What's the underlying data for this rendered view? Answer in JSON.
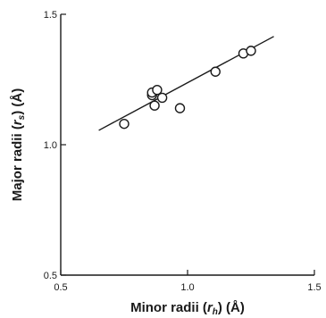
{
  "chart_data": {
    "type": "scatter",
    "title": "",
    "xlabel": {
      "prefix": "Minor radii (",
      "symbol": "r",
      "subscript": "h",
      "suffix": ") (Å)"
    },
    "ylabel": {
      "prefix": "Major radii (",
      "symbol": "r",
      "subscript": "s",
      "suffix": ") (Å)"
    },
    "xlim": [
      0.5,
      1.5
    ],
    "ylim": [
      0.5,
      1.5
    ],
    "xticks": [
      "0.5",
      "1.0",
      "1.5"
    ],
    "yticks": [
      "0.5",
      "1.0",
      "1.5"
    ],
    "grid": false,
    "points": [
      {
        "x": 0.75,
        "y": 1.08
      },
      {
        "x": 0.86,
        "y": 1.19
      },
      {
        "x": 0.86,
        "y": 1.2
      },
      {
        "x": 0.87,
        "y": 1.15
      },
      {
        "x": 0.88,
        "y": 1.21
      },
      {
        "x": 0.9,
        "y": 1.18
      },
      {
        "x": 0.97,
        "y": 1.14
      },
      {
        "x": 1.11,
        "y": 1.28
      },
      {
        "x": 1.22,
        "y": 1.35
      },
      {
        "x": 1.25,
        "y": 1.36
      }
    ],
    "fit_line": {
      "x": [
        0.65,
        1.34
      ],
      "y": [
        1.055,
        1.415
      ]
    }
  }
}
